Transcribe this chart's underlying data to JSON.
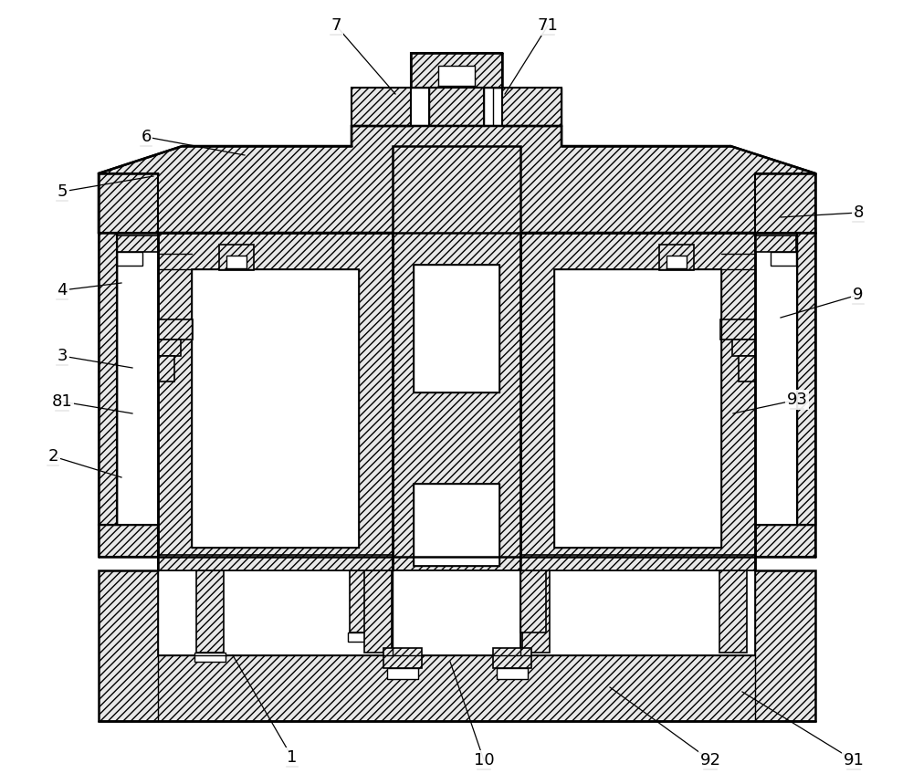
{
  "bg_color": "#ffffff",
  "line_color": "#000000",
  "fig_width": 10.0,
  "fig_height": 8.59,
  "leaders": {
    "1": {
      "lpos": [
        320,
        830
      ],
      "fpos": [
        255,
        718
      ]
    },
    "2": {
      "lpos": [
        58,
        500
      ],
      "fpos": [
        133,
        523
      ]
    },
    "3": {
      "lpos": [
        68,
        390
      ],
      "fpos": [
        145,
        403
      ]
    },
    "4": {
      "lpos": [
        68,
        318
      ],
      "fpos": [
        133,
        310
      ]
    },
    "5": {
      "lpos": [
        68,
        210
      ],
      "fpos": [
        168,
        193
      ]
    },
    "6": {
      "lpos": [
        160,
        150
      ],
      "fpos": [
        268,
        170
      ]
    },
    "7": {
      "lpos": [
        368,
        28
      ],
      "fpos": [
        433,
        103
      ]
    },
    "71": {
      "lpos": [
        600,
        28
      ],
      "fpos": [
        553,
        103
      ]
    },
    "8": {
      "lpos": [
        940,
        233
      ],
      "fpos": [
        855,
        238
      ]
    },
    "9": {
      "lpos": [
        940,
        323
      ],
      "fpos": [
        855,
        348
      ]
    },
    "10": {
      "lpos": [
        530,
        833
      ],
      "fpos": [
        493,
        725
      ]
    },
    "81": {
      "lpos": [
        68,
        440
      ],
      "fpos": [
        145,
        453
      ]
    },
    "91": {
      "lpos": [
        935,
        833
      ],
      "fpos": [
        813,
        758
      ]
    },
    "92": {
      "lpos": [
        778,
        833
      ],
      "fpos": [
        668,
        753
      ]
    },
    "93": {
      "lpos": [
        873,
        438
      ],
      "fpos": [
        803,
        453
      ]
    }
  }
}
